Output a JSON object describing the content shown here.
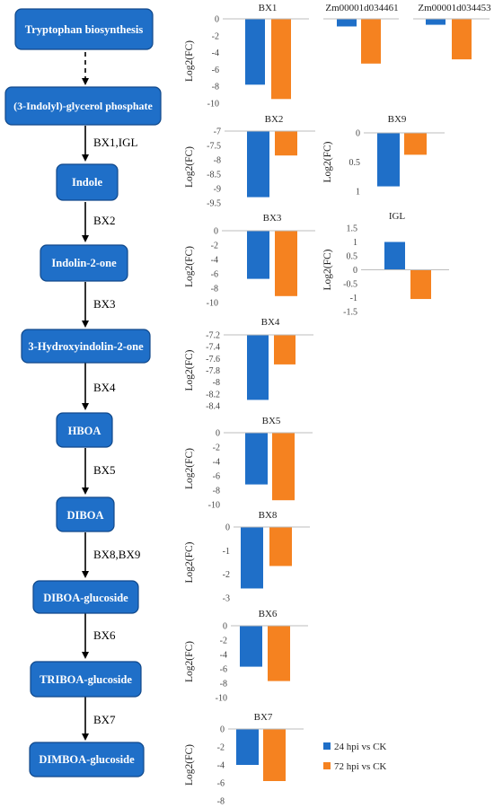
{
  "pathway": {
    "nodes": [
      "Tryptophan biosynthesis",
      "(3-Indolyl)-glycerol phosphate",
      "Indole",
      "Indolin-2-one",
      "3-Hydroxyindolin-2-one",
      "HBOA",
      "DIBOA",
      "DIBOA-glucoside",
      "TRIBOA-glucoside",
      "DIMBOA-glucoside"
    ],
    "steps": [
      "",
      "BX1,IGL",
      "BX2",
      "BX3",
      "BX4",
      "BX5",
      "BX8,BX9",
      "BX6",
      "BX7"
    ]
  },
  "legend": [
    {
      "label": "24 hpi vs CK",
      "color": "#1f6fc8"
    },
    {
      "label": "72 hpi vs CK",
      "color": "#f58220"
    }
  ],
  "colors": {
    "node_fill": "#1f6fc8",
    "node_border": "#10488a",
    "series1": "#1f6fc8",
    "series2": "#f58220"
  },
  "chart_data": [
    {
      "type": "bar",
      "title": "BX1",
      "ylabel": "Log2(FC)",
      "ylim": [
        -10,
        0
      ],
      "yticks": [
        "0",
        "-2",
        "-4",
        "-6",
        "-8",
        "-10"
      ],
      "series": [
        {
          "name": "24 hpi vs CK",
          "values": [
            -7.8
          ]
        },
        {
          "name": "72 hpi vs CK",
          "values": [
            -9.5
          ]
        }
      ]
    },
    {
      "type": "bar",
      "title": "Zm00001d034461",
      "ylabel": "",
      "ylim": [
        -10,
        0
      ],
      "yticks": [],
      "series": [
        {
          "name": "24 hpi vs CK",
          "values": [
            -0.9
          ]
        },
        {
          "name": "72 hpi vs CK",
          "values": [
            -5.3
          ]
        }
      ]
    },
    {
      "type": "bar",
      "title": "Zm00001d034453",
      "ylabel": "",
      "ylim": [
        -10,
        0
      ],
      "yticks": [],
      "series": [
        {
          "name": "24 hpi vs CK",
          "values": [
            -0.7
          ]
        },
        {
          "name": "72 hpi vs CK",
          "values": [
            -4.8
          ]
        }
      ]
    },
    {
      "type": "bar",
      "title": "BX2",
      "ylabel": "Log2(FC)",
      "ylim": [
        -9.5,
        -7
      ],
      "yticks": [
        "-7",
        "-7.5",
        "-8",
        "-8.5",
        "-9",
        "-9.5"
      ],
      "series": [
        {
          "name": "24 hpi vs CK",
          "values": [
            -9.3
          ]
        },
        {
          "name": "72 hpi vs CK",
          "values": [
            -7.85
          ]
        }
      ]
    },
    {
      "type": "bar",
      "title": "BX9",
      "ylabel": "Log2(FC)",
      "ylim": [
        1.2,
        0
      ],
      "yticks": [
        "0",
        "0.5",
        "1"
      ],
      "series": [
        {
          "name": "24 hpi vs CK",
          "values": [
            1.1
          ]
        },
        {
          "name": "72 hpi vs CK",
          "values": [
            0.45
          ]
        }
      ]
    },
    {
      "type": "bar",
      "title": "BX3",
      "ylabel": "Log2(FC)",
      "ylim": [
        -10,
        0
      ],
      "yticks": [
        "0",
        "-2",
        "-4",
        "-6",
        "-8",
        "-10"
      ],
      "series": [
        {
          "name": "24 hpi vs CK",
          "values": [
            -6.7
          ]
        },
        {
          "name": "72 hpi vs CK",
          "values": [
            -9.1
          ]
        }
      ]
    },
    {
      "type": "bar",
      "title": "IGL",
      "ylabel": "Log2(FC)",
      "ylim": [
        -1.5,
        1.5
      ],
      "yticks": [
        "1.5",
        "1",
        "0.5",
        "0",
        "-0.5",
        "-1",
        "-1.5"
      ],
      "series": [
        {
          "name": "24 hpi vs CK",
          "values": [
            1.0
          ]
        },
        {
          "name": "72 hpi vs CK",
          "values": [
            -1.05
          ]
        }
      ]
    },
    {
      "type": "bar",
      "title": "BX4",
      "ylabel": "Log2(FC)",
      "ylim": [
        -8.4,
        -7.2
      ],
      "yticks": [
        "-7.2",
        "-7.4",
        "-7.6",
        "-7.8",
        "-8",
        "-8.2",
        "-8.4"
      ],
      "series": [
        {
          "name": "24 hpi vs CK",
          "values": [
            -8.3
          ]
        },
        {
          "name": "72 hpi vs CK",
          "values": [
            -7.7
          ]
        }
      ]
    },
    {
      "type": "bar",
      "title": "BX5",
      "ylabel": "Log2(FC)",
      "ylim": [
        -10,
        0
      ],
      "yticks": [
        "0",
        "-2",
        "-4",
        "-6",
        "-8",
        "-10"
      ],
      "series": [
        {
          "name": "24 hpi vs CK",
          "values": [
            -7.2
          ]
        },
        {
          "name": "72 hpi vs CK",
          "values": [
            -9.4
          ]
        }
      ]
    },
    {
      "type": "bar",
      "title": "BX8",
      "ylabel": "Log2(FC)",
      "ylim": [
        -3,
        0
      ],
      "yticks": [
        "0",
        "-1",
        "-2",
        "-3"
      ],
      "series": [
        {
          "name": "24 hpi vs CK",
          "values": [
            -2.6
          ]
        },
        {
          "name": "72 hpi vs CK",
          "values": [
            -1.65
          ]
        }
      ]
    },
    {
      "type": "bar",
      "title": "BX6",
      "ylabel": "Log2(FC)",
      "ylim": [
        -10,
        0
      ],
      "yticks": [
        "0",
        "-2",
        "-4",
        "-6",
        "-8",
        "-10"
      ],
      "series": [
        {
          "name": "24 hpi vs CK",
          "values": [
            -5.7
          ]
        },
        {
          "name": "72 hpi vs CK",
          "values": [
            -7.7
          ]
        }
      ]
    },
    {
      "type": "bar",
      "title": "BX7",
      "ylabel": "Log2(FC)",
      "ylim": [
        -8,
        0
      ],
      "yticks": [
        "0",
        "-2",
        "-4",
        "-6",
        "-8"
      ],
      "series": [
        {
          "name": "24 hpi vs CK",
          "values": [
            -4.0
          ]
        },
        {
          "name": "72 hpi vs CK",
          "values": [
            -5.8
          ]
        }
      ]
    }
  ]
}
